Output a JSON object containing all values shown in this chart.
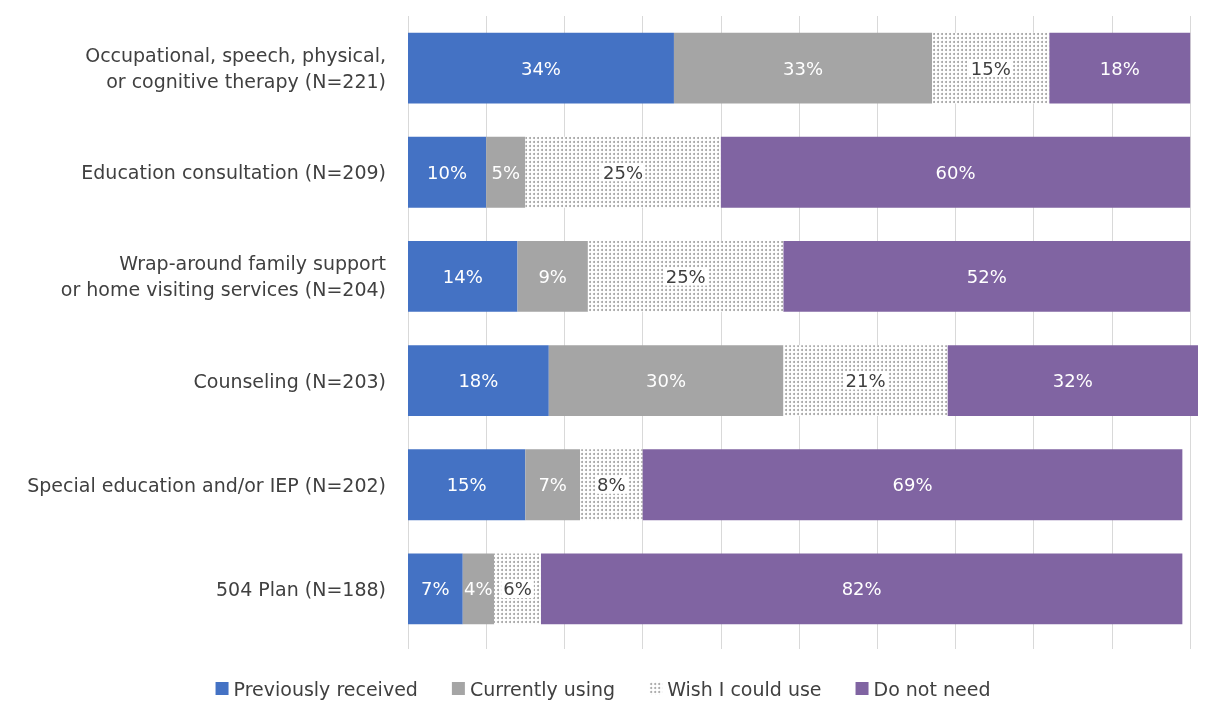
{
  "chart_data": {
    "type": "bar",
    "orientation": "horizontal",
    "stacked": true,
    "grid": "x",
    "legend": "bottom",
    "tick_labels": "y",
    "categories": [
      "Occupational, speech, physical,\nor cognitive therapy (N=221)",
      "Education consultation (N=209)",
      "Wrap-around family support\nor home visiting services (N=204)",
      "Counseling (N=203)",
      "Special education and/or IEP (N=202)",
      "504 Plan (N=188)"
    ],
    "series": [
      {
        "name": "Previously received",
        "color": "#4472c4",
        "values": [
          34,
          10,
          14,
          18,
          15,
          7
        ],
        "value_labels": [
          "34%",
          "10%",
          "14%",
          "18%",
          "15%",
          "7%"
        ]
      },
      {
        "name": "Currently using",
        "color": "#a5a5a5",
        "values": [
          33,
          5,
          9,
          30,
          7,
          4
        ],
        "value_labels": [
          "33%",
          "5%",
          "9%",
          "30%",
          "7%",
          "4%"
        ]
      },
      {
        "name": "Wish I could use",
        "color": "#ffffff",
        "values": [
          15,
          25,
          25,
          21,
          8,
          6
        ],
        "value_labels": [
          "15%",
          "25%",
          "25%",
          "21%",
          "8%",
          "6%"
        ]
      },
      {
        "name": "Do not need",
        "color": "#8064a2",
        "values": [
          18,
          60,
          52,
          32,
          69,
          82
        ],
        "value_labels": [
          "18%",
          "60%",
          "52%",
          "32%",
          "69%",
          "82%"
        ]
      }
    ]
  }
}
